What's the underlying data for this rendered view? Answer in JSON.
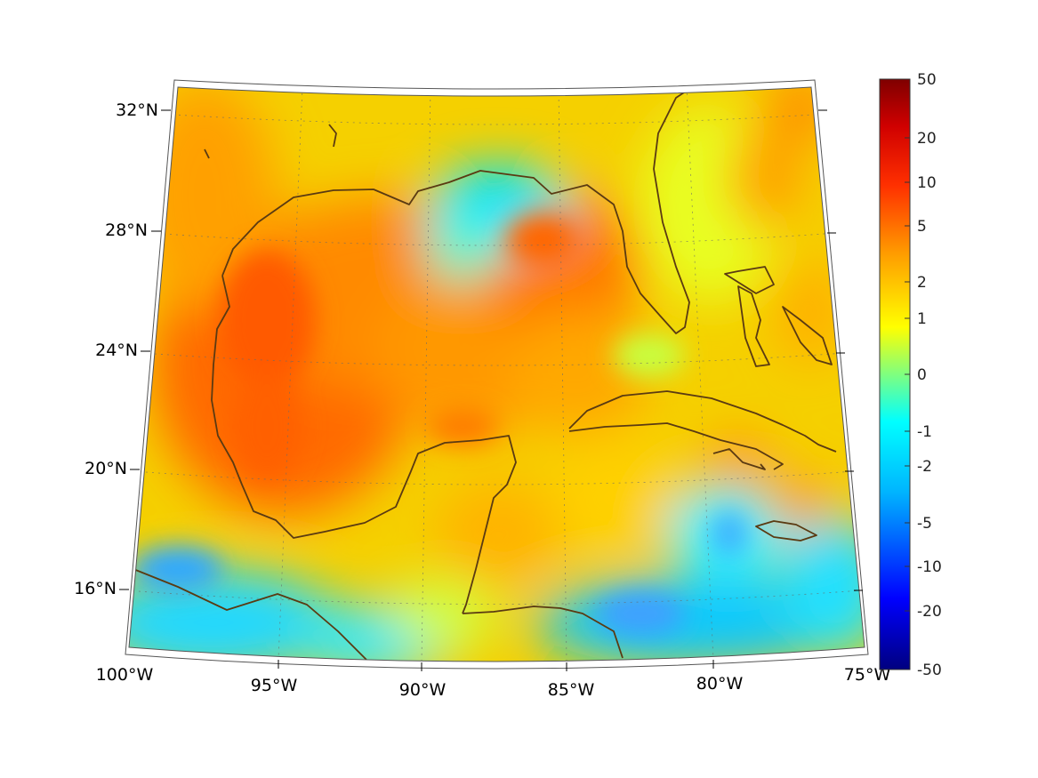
{
  "map": {
    "projection": "lambert-conformal-conic",
    "lon_range": [
      -100,
      -75
    ],
    "lat_range": [
      14,
      33
    ],
    "grid": true,
    "coastline_color": "#5a3a12",
    "lat_ticks": [
      {
        "value": 32,
        "label": "32°N"
      },
      {
        "value": 28,
        "label": "28°N"
      },
      {
        "value": 24,
        "label": "24°N"
      },
      {
        "value": 20,
        "label": "20°N"
      },
      {
        "value": 16,
        "label": "16°N"
      }
    ],
    "lon_ticks": [
      {
        "value": -100,
        "label": "100°W"
      },
      {
        "value": -95,
        "label": "95°W"
      },
      {
        "value": -90,
        "label": "90°W"
      },
      {
        "value": -85,
        "label": "85°W"
      },
      {
        "value": -80,
        "label": "80°W"
      },
      {
        "value": -75,
        "label": "75°W"
      }
    ]
  },
  "colorbar": {
    "colormap": "jet",
    "placement": "right",
    "ticks": [
      "50",
      "20",
      "10",
      "5",
      "2",
      "1",
      "0",
      "-1",
      "-2",
      "-5",
      "-10",
      "-20",
      "-50"
    ]
  }
}
